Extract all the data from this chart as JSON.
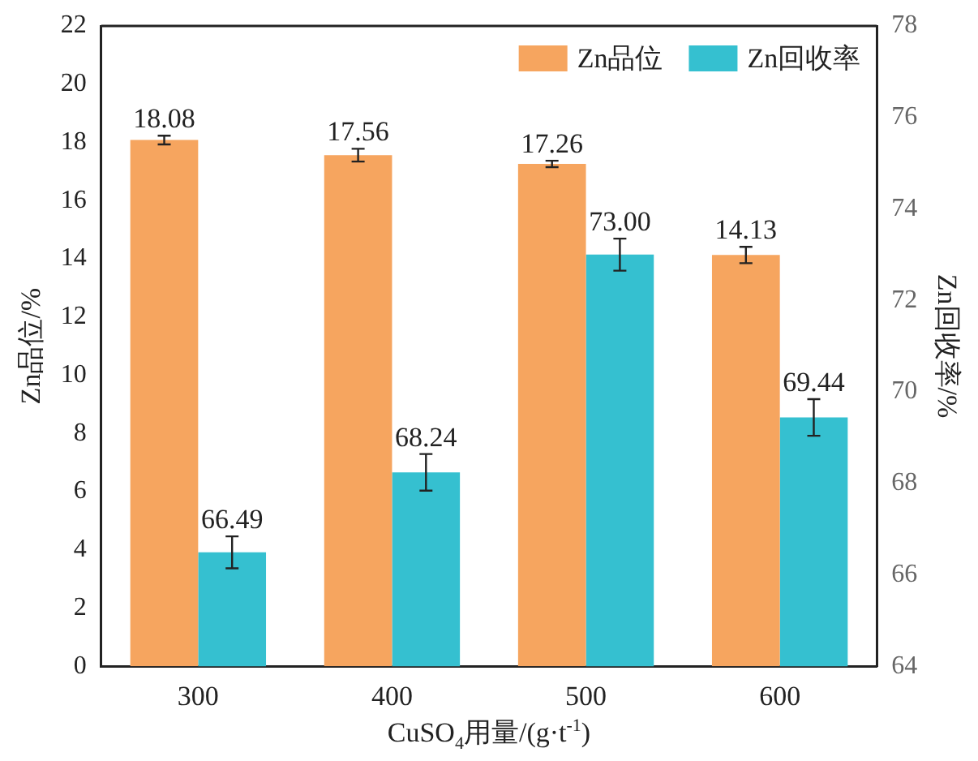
{
  "chart_data": {
    "type": "bar",
    "xlabel": "CuSO$_{4}$用量/(g·t$^{-1}$)",
    "ylabel": "Zn品位/%",
    "y2label": "Zn回收率/%",
    "categories": [
      "300",
      "400",
      "500",
      "600"
    ],
    "series": [
      {
        "name": "Zn品位",
        "color": "#f6a55f",
        "values": [
          18.08,
          17.56,
          17.26,
          14.13
        ],
        "errors": [
          0.15,
          0.22,
          0.11,
          0.28
        ],
        "value_labels": [
          "18.08",
          "17.56",
          "17.26",
          "14.13"
        ]
      },
      {
        "name": "Zn回收率",
        "color": "#35c0d0",
        "axis": "y2",
        "values": [
          66.49,
          68.24,
          73.0,
          69.44
        ],
        "errors": [
          0.35,
          0.4,
          0.35,
          0.4
        ],
        "value_labels": [
          "66.49",
          "68.24",
          "73.00",
          "69.44"
        ]
      }
    ],
    "ylim": [
      0,
      22
    ],
    "yticks": [
      0,
      2,
      4,
      6,
      8,
      10,
      12,
      14,
      16,
      18,
      20,
      22
    ],
    "y2lim": [
      64,
      78
    ],
    "y2ticks": [
      64,
      66,
      68,
      70,
      72,
      74,
      76,
      78
    ],
    "legend": "top right",
    "grid": false
  }
}
